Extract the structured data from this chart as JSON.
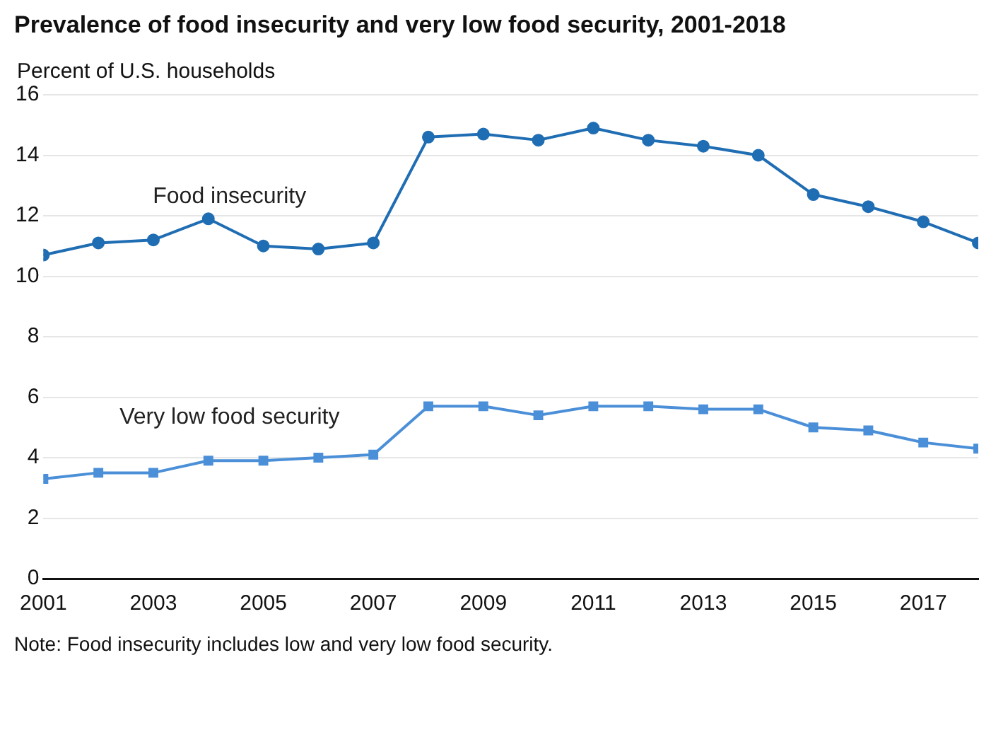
{
  "chart_data": {
    "type": "line",
    "title": "Prevalence of food insecurity and very low food security, 2001-2018",
    "ylabel": "Percent of U.S. households",
    "annotations": [
      "Note: Food insecurity includes low and very low food security."
    ],
    "x": [
      2001,
      2002,
      2003,
      2004,
      2005,
      2006,
      2007,
      2008,
      2009,
      2010,
      2011,
      2012,
      2013,
      2014,
      2015,
      2016,
      2017,
      2018
    ],
    "series": [
      {
        "name": "Food insecurity",
        "color": "#1f6db3",
        "marker": "circle",
        "values": [
          10.7,
          11.1,
          11.2,
          11.9,
          11.0,
          10.9,
          11.1,
          14.6,
          14.7,
          14.5,
          14.9,
          14.5,
          14.3,
          14.0,
          12.7,
          12.3,
          11.8,
          11.1
        ]
      },
      {
        "name": "Very low food security",
        "color": "#4a8fd8",
        "marker": "square",
        "values": [
          3.3,
          3.5,
          3.5,
          3.9,
          3.9,
          4.0,
          4.1,
          5.7,
          5.7,
          5.4,
          5.7,
          5.7,
          5.6,
          5.6,
          5.0,
          4.9,
          4.5,
          4.3
        ]
      }
    ],
    "xlim": [
      2001,
      2018
    ],
    "xticks": [
      2001,
      2003,
      2005,
      2007,
      2009,
      2011,
      2013,
      2015,
      2017
    ],
    "ylim": [
      0,
      16
    ],
    "yticks": [
      0,
      2,
      4,
      6,
      8,
      10,
      12,
      14,
      16
    ],
    "grid": "y",
    "legend": false,
    "line_style": "solid"
  }
}
